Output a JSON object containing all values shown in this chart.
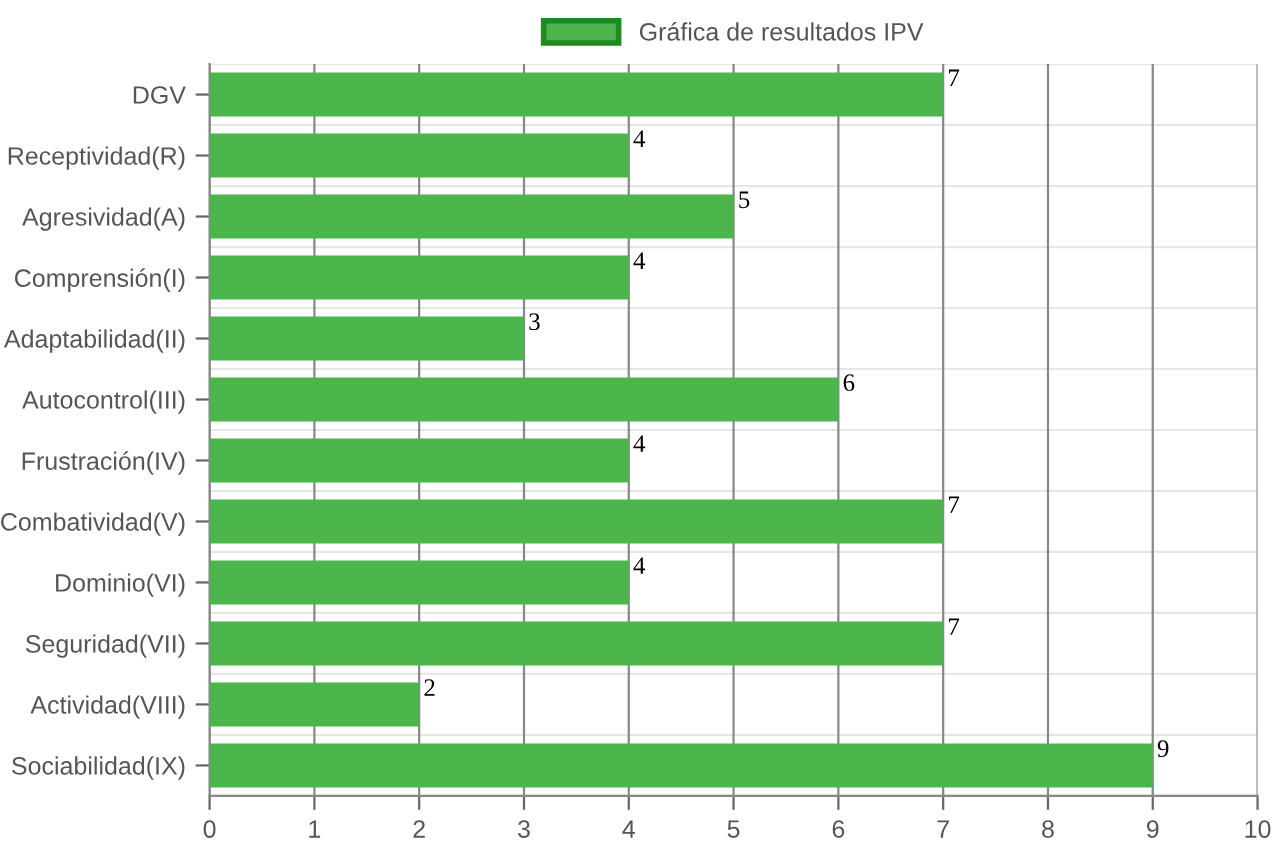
{
  "chart_data": {
    "type": "bar",
    "orientation": "horizontal",
    "categories": [
      "DGV",
      "Receptividad(R)",
      "Agresividad(A)",
      "Comprensión(I)",
      "Adaptabilidad(II)",
      "Autocontrol(III)",
      "Frustración(IV)",
      "Combatividad(V)",
      "Dominio(VI)",
      "Seguridad(VII)",
      "Actividad(VIII)",
      "Sociabilidad(IX)"
    ],
    "series": [
      {
        "name": "Gráfica de resultados IPV",
        "color": "#4cb54c",
        "values": [
          7,
          4,
          5,
          4,
          3,
          6,
          4,
          7,
          4,
          7,
          2,
          9
        ]
      }
    ],
    "xlim": [
      0,
      10
    ],
    "xticks": [
      0,
      1,
      2,
      3,
      4,
      5,
      6,
      7,
      8,
      9,
      10
    ],
    "grid": true,
    "legend": "top",
    "data_labels": true
  }
}
